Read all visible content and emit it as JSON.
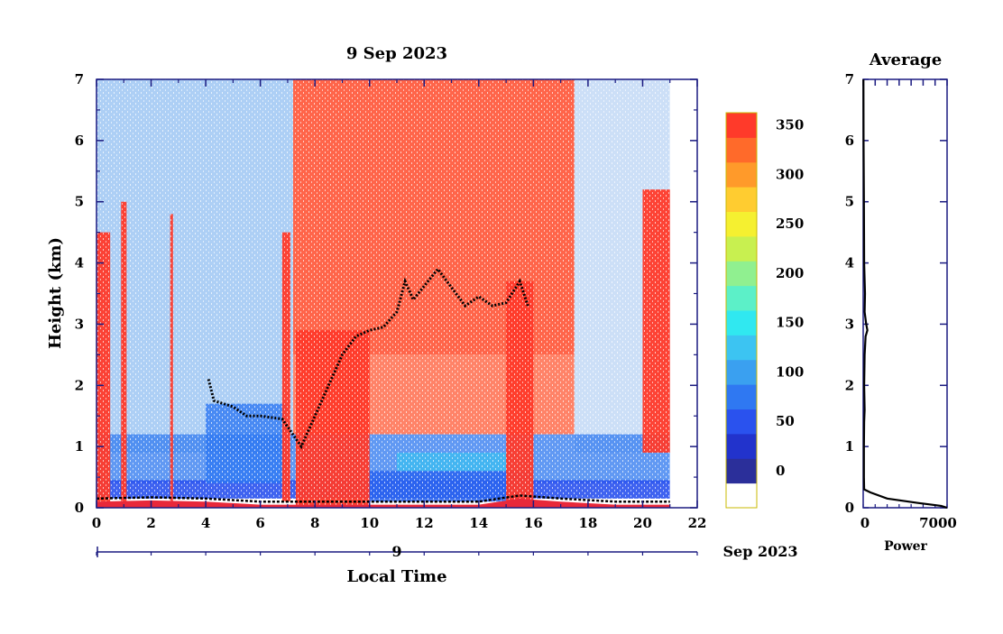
{
  "chart_data": [
    {
      "type": "heatmap",
      "title": "9 Sep 2023",
      "xlabel": "Local Time",
      "ylabel": "Height (km)",
      "xlim": [
        0,
        22
      ],
      "ylim": [
        0,
        7
      ],
      "x_ticks": [
        "0",
        "2",
        "4",
        "6",
        "8",
        "10",
        "12",
        "14",
        "16",
        "18",
        "20",
        "22"
      ],
      "y_ticks": [
        "0",
        "1",
        "2",
        "3",
        "4",
        "5",
        "6",
        "7"
      ],
      "date_axis_label": "9",
      "date_axis_suffix": "Sep 2023",
      "colorbar": {
        "ticks": [
          "0",
          "50",
          "100",
          "150",
          "200",
          "250",
          "300",
          "350"
        ],
        "colors": [
          "#ffffff",
          "#2b2f9a",
          "#2233cc",
          "#2a52ee",
          "#2f78f2",
          "#3aa0f0",
          "#3cc4f2",
          "#30e8f0",
          "#5cf0c8",
          "#90f090",
          "#c8f050",
          "#f5f030",
          "#ffcc30",
          "#ff9a2a",
          "#ff6a2a",
          "#ff3a2a"
        ]
      },
      "features": {
        "surface_layer": [
          [
            0,
            0.1
          ],
          [
            2,
            0.12
          ],
          [
            4,
            0.1
          ],
          [
            6,
            0.05
          ],
          [
            8,
            0.05
          ],
          [
            10,
            0.05
          ],
          [
            12,
            0.05
          ],
          [
            14,
            0.05
          ],
          [
            15.5,
            0.15
          ],
          [
            17,
            0.1
          ],
          [
            19,
            0.05
          ],
          [
            21,
            0.05
          ]
        ],
        "boundary_layer_top": [
          [
            4.1,
            2.1
          ],
          [
            4.3,
            1.75
          ],
          [
            5,
            1.65
          ],
          [
            5.5,
            1.5
          ],
          [
            6,
            1.5
          ],
          [
            6.8,
            1.45
          ],
          [
            7.5,
            1.0
          ],
          [
            8,
            1.5
          ],
          [
            8.5,
            2.0
          ],
          [
            9,
            2.5
          ],
          [
            9.5,
            2.8
          ],
          [
            10,
            2.9
          ],
          [
            10.5,
            2.95
          ],
          [
            11,
            3.2
          ],
          [
            11.3,
            3.7
          ],
          [
            11.6,
            3.4
          ],
          [
            12.5,
            3.9
          ],
          [
            13.5,
            3.3
          ],
          [
            14,
            3.45
          ],
          [
            14.5,
            3.3
          ],
          [
            15,
            3.35
          ],
          [
            15.5,
            3.7
          ],
          [
            15.8,
            3.3
          ]
        ],
        "saturated_columns": [
          [
            0.0,
            0.5
          ],
          [
            0.9,
            1.1
          ],
          [
            2.7,
            2.8
          ],
          [
            6.8,
            7.1
          ],
          [
            7.3,
            10.0
          ],
          [
            15.0,
            16.0
          ],
          [
            20.0,
            21.0
          ]
        ]
      }
    },
    {
      "type": "line",
      "title": "Average",
      "xlabel": "Power",
      "xlim": [
        0,
        7000
      ],
      "ylim": [
        0,
        7
      ],
      "x_ticks": [
        "0",
        "7000"
      ],
      "x": [
        20,
        30,
        60,
        80,
        120,
        100,
        150,
        80,
        60,
        40,
        40,
        30,
        20,
        10
      ],
      "y": [
        7.0,
        6.0,
        5.0,
        4.0,
        3.5,
        3.0,
        2.8,
        2.0,
        1.5,
        1.0,
        0.5,
        0.3,
        0.2,
        0.0
      ],
      "profile": [
        [
          20,
          7.0
        ],
        [
          30,
          6.0
        ],
        [
          60,
          5.0
        ],
        [
          80,
          4.0
        ],
        [
          150,
          3.5
        ],
        [
          120,
          3.2
        ],
        [
          250,
          3.0
        ],
        [
          350,
          2.9
        ],
        [
          200,
          2.8
        ],
        [
          120,
          2.5
        ],
        [
          80,
          2.0
        ],
        [
          120,
          1.6
        ],
        [
          80,
          1.4
        ],
        [
          60,
          1.0
        ],
        [
          60,
          0.5
        ],
        [
          80,
          0.3
        ],
        [
          600,
          0.25
        ],
        [
          2000,
          0.15
        ],
        [
          4500,
          0.08
        ],
        [
          6500,
          0.03
        ],
        [
          7000,
          0.0
        ]
      ]
    }
  ]
}
